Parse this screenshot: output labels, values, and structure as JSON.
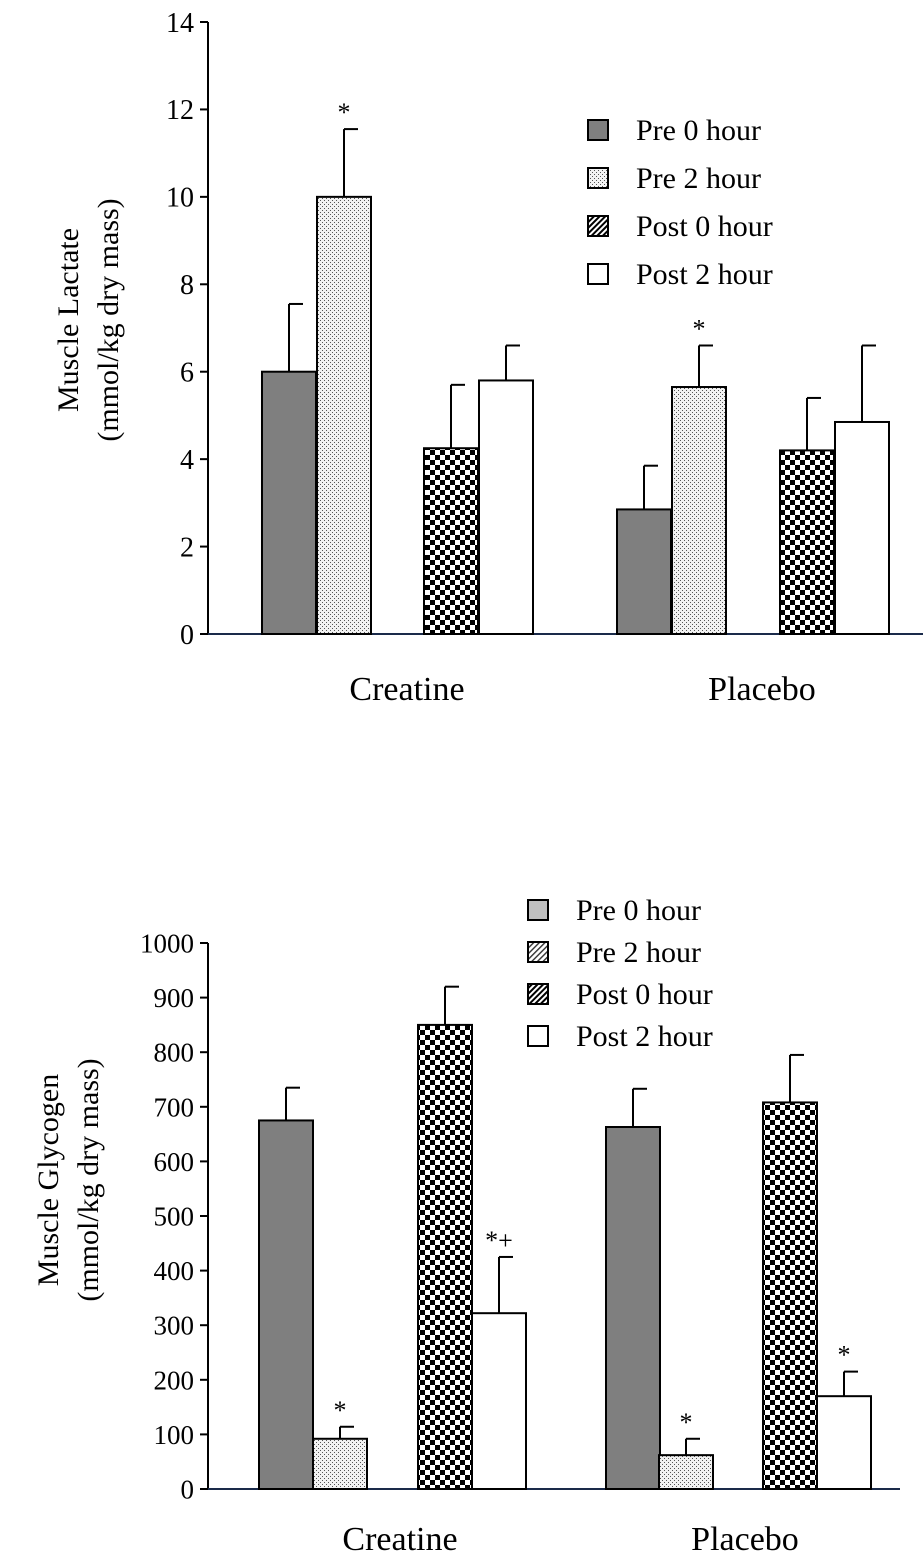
{
  "chart_data": [
    {
      "type": "bar",
      "ylabel_line1": "Muscle Lactate",
      "ylabel_line2": "(mmol/kg dry mass)",
      "ylim": [
        0,
        14
      ],
      "yticks": [
        0,
        2,
        4,
        6,
        8,
        10,
        12,
        14
      ],
      "groups": [
        "Creatine",
        "Placebo"
      ],
      "legend_position": "top-right",
      "series": [
        {
          "name": "Pre 0 hour",
          "legend_pattern": "solid",
          "bar_pattern": "solid",
          "values": [
            6.0,
            2.85
          ],
          "errors": [
            1.55,
            1.0
          ],
          "significance": [
            "",
            ""
          ]
        },
        {
          "name": "Pre 2 hour",
          "legend_pattern": "dots",
          "bar_pattern": "dots",
          "values": [
            10.0,
            5.65
          ],
          "errors": [
            1.55,
            0.95
          ],
          "significance": [
            "*",
            "*"
          ]
        },
        {
          "name": "Post 0 hour",
          "legend_pattern": "hatch",
          "bar_pattern": "checker",
          "values": [
            4.25,
            4.2
          ],
          "errors": [
            1.45,
            1.2
          ],
          "significance": [
            "",
            ""
          ]
        },
        {
          "name": "Post 2 hour",
          "legend_pattern": "white",
          "bar_pattern": "white",
          "values": [
            5.8,
            4.85
          ],
          "errors": [
            0.8,
            1.75
          ],
          "significance": [
            "",
            ""
          ]
        }
      ]
    },
    {
      "type": "bar",
      "ylabel_line1": "Muscle Glycogen",
      "ylabel_line2": "(mmol/kg dry mass)",
      "ylim": [
        0,
        1000
      ],
      "yticks": [
        0,
        100,
        200,
        300,
        400,
        500,
        600,
        700,
        800,
        900,
        1000
      ],
      "groups": [
        "Creatine",
        "Placebo"
      ],
      "legend_position": "top-right",
      "series": [
        {
          "name": "Pre 0 hour",
          "legend_pattern": "lightgray",
          "bar_pattern": "solid",
          "values": [
            675,
            663
          ],
          "errors": [
            60,
            70
          ],
          "significance": [
            "",
            ""
          ]
        },
        {
          "name": "Pre 2 hour",
          "legend_pattern": "hatch-light",
          "bar_pattern": "dots",
          "values": [
            92,
            62
          ],
          "errors": [
            22,
            30
          ],
          "significance": [
            "*",
            "*"
          ]
        },
        {
          "name": "Post 0 hour",
          "legend_pattern": "hatch",
          "bar_pattern": "checker",
          "values": [
            850,
            708
          ],
          "errors": [
            70,
            87
          ],
          "significance": [
            "",
            ""
          ]
        },
        {
          "name": "Post 2 hour",
          "legend_pattern": "white",
          "bar_pattern": "white",
          "values": [
            322,
            170
          ],
          "errors": [
            103,
            45
          ],
          "significance": [
            "*+",
            "*"
          ]
        }
      ]
    }
  ]
}
